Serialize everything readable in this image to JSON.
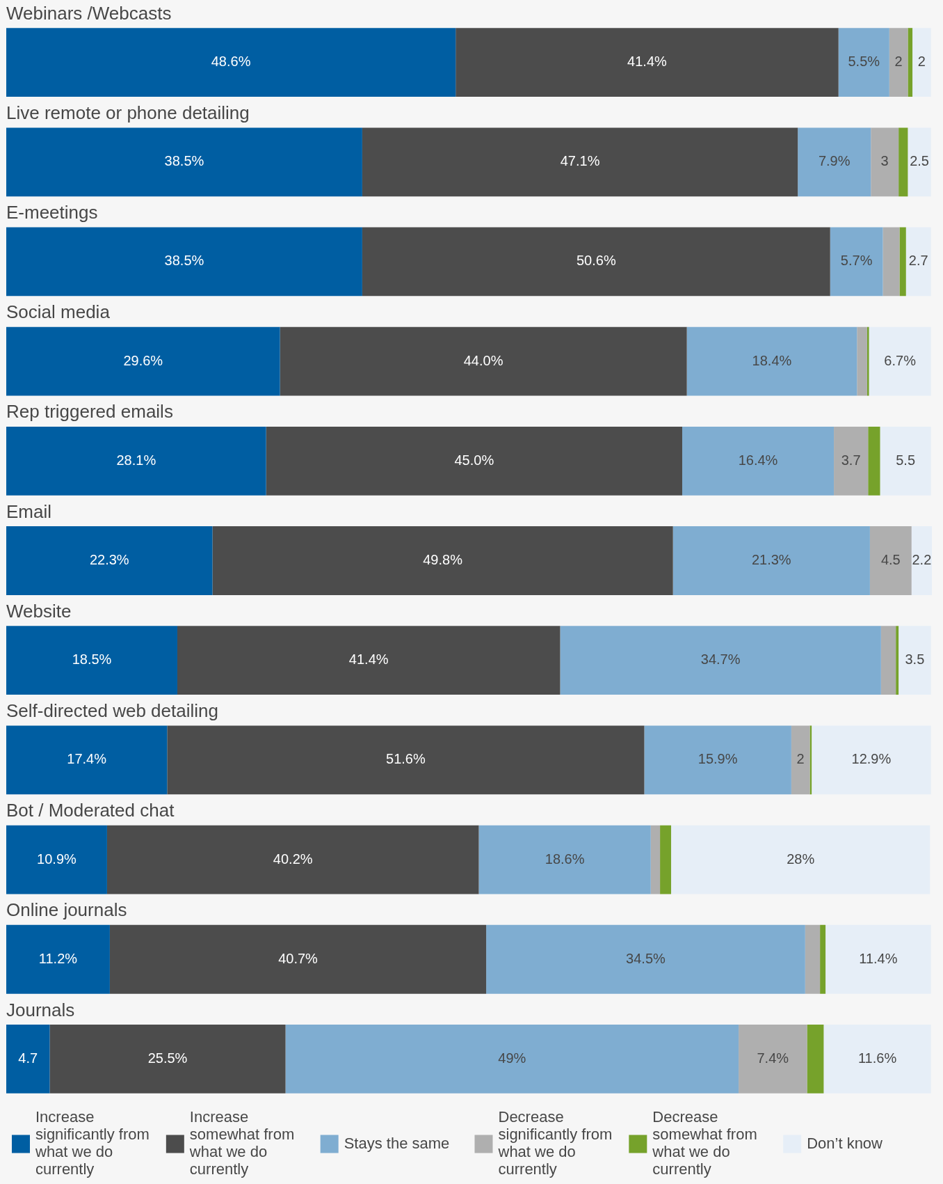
{
  "chart_data": {
    "type": "bar",
    "orientation": "horizontal",
    "stacked": true,
    "categories": [
      "Webinars /Webcasts",
      "Live remote or phone detailing",
      "E-meetings",
      "Social media",
      "Rep triggered emails",
      "Email",
      "Website",
      "Self-directed web detailing",
      "Bot / Moderated chat",
      "Online journals",
      "Journals"
    ],
    "series": [
      {
        "name": "Increase significantly from what we do currently",
        "color": "#005ea2",
        "values": [
          48.6,
          38.5,
          38.5,
          29.6,
          28.1,
          22.3,
          18.5,
          17.4,
          10.9,
          11.2,
          4.7
        ],
        "value_labels": [
          "48.6%",
          "38.5%",
          "38.5%",
          "29.6%",
          "28.1%",
          "22.3%",
          "18.5%",
          "17.4%",
          "10.9%",
          "11.2%",
          "4.7"
        ]
      },
      {
        "name": "Increase somewhat from what we do currently",
        "color": "#4c4c4c",
        "values": [
          41.4,
          47.1,
          50.6,
          44.0,
          45.0,
          49.8,
          41.4,
          51.6,
          40.2,
          40.7,
          25.5
        ],
        "value_labels": [
          "41.4%",
          "47.1%",
          "50.6%",
          "44.0%",
          "45.0%",
          "49.8%",
          "41.4%",
          "51.6%",
          "40.2%",
          "40.7%",
          "25.5%"
        ]
      },
      {
        "name": "Stays the same",
        "color": "#7fadd1",
        "values": [
          5.5,
          7.9,
          5.7,
          18.4,
          16.4,
          21.3,
          34.7,
          15.9,
          18.6,
          34.5,
          49
        ],
        "value_labels": [
          "5.5%",
          "7.9%",
          "5.7%",
          "18.4%",
          "16.4%",
          "21.3%",
          "34.7%",
          "15.9%",
          "18.6%",
          "34.5%",
          "49%"
        ]
      },
      {
        "name": "Decrease significantly from what we do currently",
        "color": "#afafaf",
        "values": [
          2,
          3,
          1.8,
          1.1,
          3.7,
          4.5,
          1.6,
          2,
          1.0,
          1.6,
          7.4
        ],
        "value_labels": [
          "2",
          "3",
          null,
          null,
          "3.7",
          "4.5",
          null,
          "2",
          null,
          null,
          "7.4%"
        ]
      },
      {
        "name": "Decrease somewhat from what we do currently",
        "color": "#76a22b",
        "values": [
          0.5,
          1.0,
          0.7,
          0.2,
          1.3,
          null,
          0.3,
          0.2,
          1.2,
          0.6,
          1.8
        ]
      },
      {
        "name": "Don’t know",
        "color": "#e6eef7",
        "values": [
          2,
          2.5,
          2.7,
          6.7,
          5.5,
          2.2,
          3.5,
          12.9,
          28,
          11.4,
          11.6
        ],
        "value_labels": [
          "2",
          "2.5",
          "2.7",
          "6.7%",
          "5.5",
          "2.2",
          "3.5",
          "12.9%",
          "28%",
          "11.4%",
          "11.6%"
        ]
      }
    ],
    "legend": "bottom"
  }
}
